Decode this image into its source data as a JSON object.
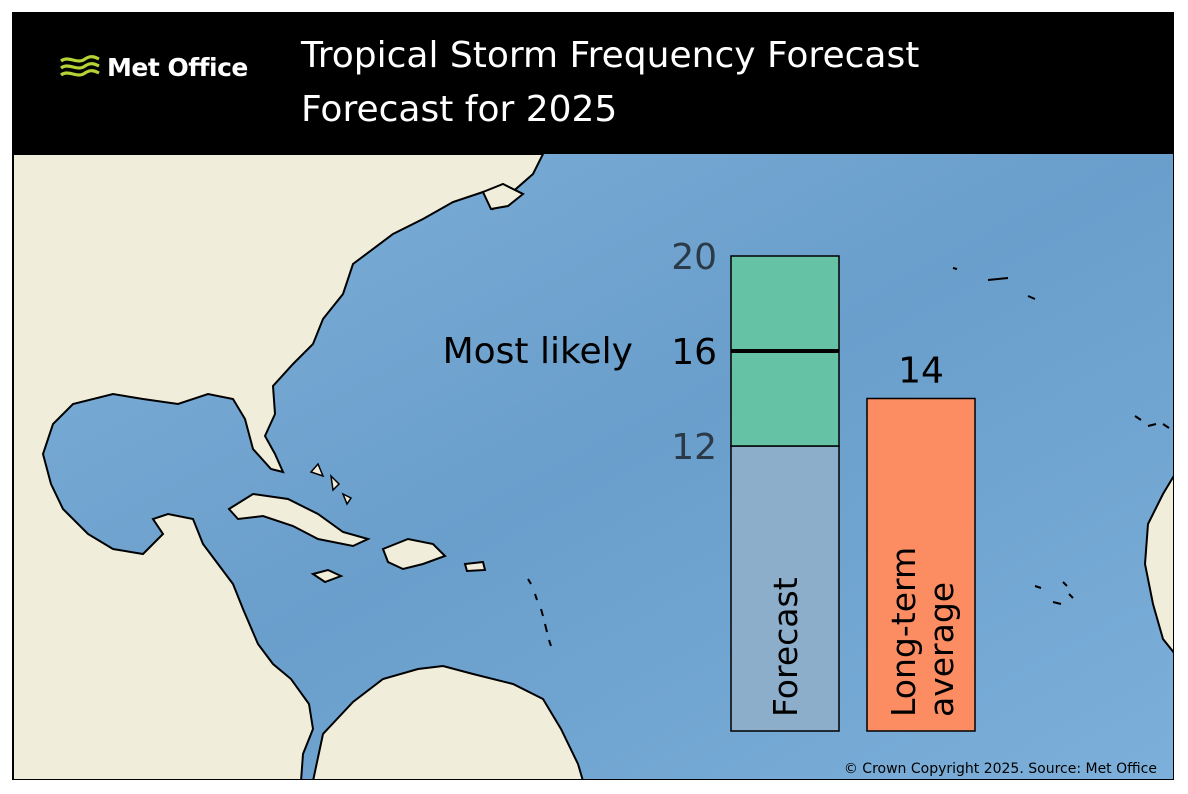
{
  "header": {
    "logo_text": "Met Office",
    "title": "Tropical Storm Frequency Forecast",
    "subtitle": "Forecast for 2025"
  },
  "footer": {
    "copyright": "© Crown Copyright 2025. Source: Met Office"
  },
  "colors": {
    "header_bg": "#000000",
    "ocean": "#74a5cf",
    "land": "#f0eedb",
    "forecast_range": "#66c2a5",
    "forecast_base": "#8caecb",
    "long_term_average": "#fc8d62",
    "logo_accent": "#b5d334"
  },
  "chart_data": {
    "type": "bar",
    "forecast": {
      "label": "Forecast",
      "range_low": 12,
      "range_high": 20,
      "most_likely": 16,
      "most_likely_label": "Most likely"
    },
    "long_term_average": {
      "label_line1": "Long-term",
      "label_line2": "average",
      "value": 14
    },
    "tick_labels": [
      "20",
      "16",
      "12"
    ],
    "ylim": [
      0,
      20
    ]
  }
}
